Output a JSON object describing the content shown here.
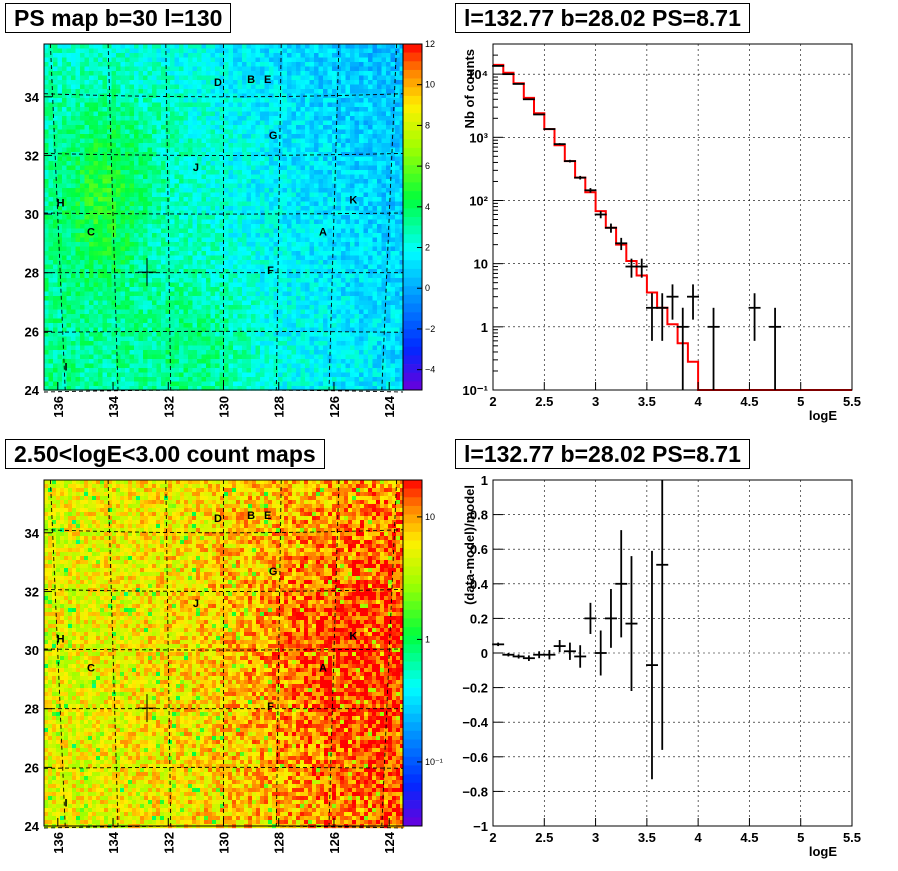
{
  "panels": {
    "ps_map": {
      "title": "PS map b=30 l=130"
    },
    "count_map": {
      "title": "2.50<logE<3.00 count maps"
    },
    "spectrum": {
      "title": "l=132.77 b=28.02 PS=8.71"
    },
    "residual": {
      "title": "l=132.77 b=28.02 PS=8.71"
    }
  },
  "chart_data": [
    {
      "type": "heatmap",
      "id": "ps_map",
      "title": "PS map b=30 l=130",
      "xlim": [
        136.5,
        123.5
      ],
      "ylim": [
        24,
        35.8
      ],
      "xticks": [
        136,
        134,
        132,
        130,
        128,
        126,
        124
      ],
      "yticks": [
        24,
        26,
        28,
        30,
        32,
        34
      ],
      "colorbar": {
        "min": -5,
        "max": 12,
        "ticks": [
          -4,
          -2,
          0,
          2,
          4,
          6,
          8,
          10,
          12
        ]
      },
      "sources": [
        {
          "label": "D",
          "l": 130.2,
          "b": 34.5
        },
        {
          "label": "B",
          "l": 129.0,
          "b": 34.6
        },
        {
          "label": "E",
          "l": 128.4,
          "b": 34.6
        },
        {
          "label": "G",
          "l": 128.2,
          "b": 32.7
        },
        {
          "label": "J",
          "l": 131.0,
          "b": 31.6
        },
        {
          "label": "H",
          "l": 135.9,
          "b": 30.4
        },
        {
          "label": "K",
          "l": 125.3,
          "b": 30.5
        },
        {
          "label": "C",
          "l": 134.8,
          "b": 29.4
        },
        {
          "label": "A",
          "l": 126.4,
          "b": 29.4
        },
        {
          "label": "F",
          "l": 128.3,
          "b": 28.1
        },
        {
          "label": "I",
          "l": 135.7,
          "b": 24.8
        }
      ],
      "marker": {
        "l": 132.77,
        "b": 28.02
      }
    },
    {
      "type": "line",
      "id": "spectrum",
      "title": "l=132.77 b=28.02 PS=8.71",
      "xlabel": "logE",
      "ylabel": "Nb of counts",
      "xlim": [
        2,
        5.5
      ],
      "ylim": [
        0.1,
        30000
      ],
      "yscale": "log",
      "xticks": [
        "2",
        "2.5",
        "3",
        "3.5",
        "4",
        "4.5",
        "5",
        "5.5"
      ],
      "yticks": [
        {
          "value": 0.1,
          "label": "10⁻¹"
        },
        {
          "value": 1,
          "label": "1"
        },
        {
          "value": 10,
          "label": "10"
        },
        {
          "value": 100,
          "label": "10²"
        },
        {
          "value": 1000,
          "label": "10³"
        },
        {
          "value": 10000,
          "label": "10⁴"
        }
      ],
      "grid": true,
      "model": {
        "color": "#ff0000",
        "edges": [
          2.0,
          2.1,
          2.2,
          2.3,
          2.4,
          2.5,
          2.6,
          2.7,
          2.8,
          2.9,
          3.0,
          3.1,
          3.2,
          3.3,
          3.4,
          3.5,
          3.6,
          3.7,
          3.8,
          3.9,
          4.0,
          5.5
        ],
        "values": [
          14000,
          10500,
          7200,
          4200,
          2400,
          1350,
          750,
          420,
          230,
          135,
          68,
          37,
          20,
          11,
          6.5,
          3.5,
          2.0,
          1.1,
          0.55,
          0.28,
          0.1
        ]
      },
      "data": {
        "x": [
          2.05,
          2.15,
          2.25,
          2.35,
          2.45,
          2.55,
          2.65,
          2.75,
          2.85,
          2.95,
          3.05,
          3.15,
          3.25,
          3.35,
          3.45,
          3.55,
          3.65,
          3.75,
          3.85,
          3.95,
          4.15,
          4.55,
          4.75
        ],
        "y": [
          13500,
          10000,
          7000,
          4000,
          2300,
          1350,
          780,
          420,
          230,
          145,
          60,
          37,
          21,
          9,
          9,
          2,
          2,
          3,
          1,
          3,
          1,
          2,
          1
        ],
        "yerr": [
          116,
          100,
          84,
          63,
          48,
          37,
          28,
          20,
          15,
          12,
          7.7,
          6.1,
          4.6,
          3,
          3,
          1.4,
          1.4,
          1.7,
          1,
          1.7,
          1,
          1.4,
          1
        ]
      }
    },
    {
      "type": "heatmap",
      "id": "count_map",
      "title": "2.50<logE<3.00 count maps",
      "xlim": [
        136.5,
        123.5
      ],
      "ylim": [
        24,
        35.8
      ],
      "xticks": [
        136,
        134,
        132,
        130,
        128,
        126,
        124
      ],
      "yticks": [
        24,
        26,
        28,
        30,
        32,
        34
      ],
      "colorbar": {
        "scale": "log",
        "min": 0.03,
        "max": 20,
        "ticks": [
          {
            "value": 0.1,
            "label": "10⁻¹"
          },
          {
            "value": 1,
            "label": "1"
          },
          {
            "value": 10,
            "label": "10"
          }
        ]
      },
      "sources": [
        {
          "label": "D",
          "l": 130.2,
          "b": 34.5
        },
        {
          "label": "B",
          "l": 129.0,
          "b": 34.6
        },
        {
          "label": "E",
          "l": 128.4,
          "b": 34.6
        },
        {
          "label": "G",
          "l": 128.2,
          "b": 32.7
        },
        {
          "label": "J",
          "l": 131.0,
          "b": 31.6
        },
        {
          "label": "H",
          "l": 135.9,
          "b": 30.4
        },
        {
          "label": "K",
          "l": 125.3,
          "b": 30.5
        },
        {
          "label": "C",
          "l": 134.8,
          "b": 29.4
        },
        {
          "label": "A",
          "l": 126.4,
          "b": 29.4
        },
        {
          "label": "F",
          "l": 128.3,
          "b": 28.1
        },
        {
          "label": "I",
          "l": 135.7,
          "b": 24.8
        }
      ],
      "marker": {
        "l": 132.77,
        "b": 28.02
      }
    },
    {
      "type": "scatter",
      "id": "residual",
      "title": "l=132.77 b=28.02 PS=8.71",
      "xlabel": "logE",
      "ylabel": "(data-model)/model",
      "xlim": [
        2,
        5.5
      ],
      "ylim": [
        -1,
        1
      ],
      "xticks": [
        "2",
        "2.5",
        "3",
        "3.5",
        "4",
        "4.5",
        "5",
        "5.5"
      ],
      "yticks": [
        "−1",
        "−0.8",
        "−0.6",
        "−0.4",
        "−0.2",
        "0",
        "0.2",
        "0.4",
        "0.6",
        "0.8",
        "1"
      ],
      "grid": true,
      "data": {
        "x": [
          2.05,
          2.15,
          2.25,
          2.35,
          2.45,
          2.55,
          2.65,
          2.75,
          2.85,
          2.95,
          3.05,
          3.15,
          3.25,
          3.35,
          3.55,
          3.65
        ],
        "y": [
          0.05,
          -0.01,
          -0.02,
          -0.03,
          -0.01,
          -0.01,
          0.04,
          0.01,
          -0.02,
          0.2,
          0.0,
          0.2,
          0.4,
          0.17,
          -0.07,
          0.51
        ],
        "yerr": [
          0.01,
          0.01,
          0.012,
          0.016,
          0.02,
          0.027,
          0.035,
          0.05,
          0.065,
          0.09,
          0.13,
          0.17,
          0.31,
          0.39,
          0.66,
          1.07
        ]
      }
    }
  ]
}
